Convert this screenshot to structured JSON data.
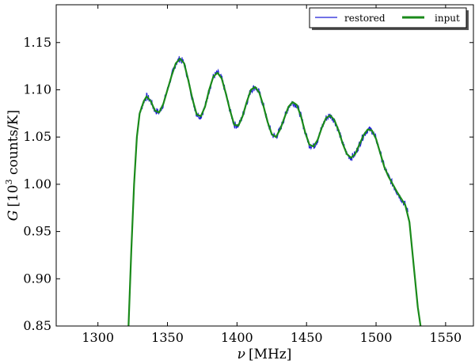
{
  "chart_data": {
    "type": "line",
    "xlabel": {
      "symbol": "ν",
      "unit": "[MHz]"
    },
    "ylabel": {
      "symbol": "G",
      "unit_pre": "[10",
      "unit_sup": "3",
      "unit_post": " counts/K]"
    },
    "xlim": [
      1270,
      1570
    ],
    "ylim": [
      0.85,
      1.19
    ],
    "xticks": [
      1300,
      1350,
      1400,
      1450,
      1500,
      1550
    ],
    "yticks": [
      0.85,
      0.9,
      0.95,
      1.0,
      1.05,
      1.1,
      1.15
    ],
    "xtick_labels": [
      "1300",
      "1350",
      "1400",
      "1450",
      "1500",
      "1550"
    ],
    "ytick_labels": [
      "0.85",
      "0.90",
      "0.95",
      "1.00",
      "1.05",
      "1.10",
      "1.15"
    ],
    "legend_position": "top-right",
    "series": [
      {
        "name": "restored",
        "color": "#1f1fd6",
        "style": "thin-noisy",
        "x": [
          1322,
          1324,
          1326,
          1328,
          1330,
          1333,
          1335,
          1338,
          1341,
          1344,
          1347,
          1350,
          1353,
          1356,
          1359,
          1362,
          1365,
          1368,
          1371,
          1374,
          1377,
          1380,
          1383,
          1386,
          1389,
          1392,
          1395,
          1398,
          1401,
          1404,
          1407,
          1410,
          1413,
          1416,
          1419,
          1422,
          1425,
          1428,
          1431,
          1434,
          1437,
          1440,
          1443,
          1446,
          1449,
          1452,
          1455,
          1458,
          1461,
          1464,
          1467,
          1470,
          1473,
          1476,
          1479,
          1482,
          1485,
          1488,
          1491,
          1494,
          1497,
          1500,
          1503,
          1506,
          1509,
          1512,
          1515,
          1518,
          1521,
          1523
        ],
        "y": [
          0.85,
          0.93,
          1.0,
          1.05,
          1.075,
          1.088,
          1.093,
          1.088,
          1.078,
          1.076,
          1.085,
          1.1,
          1.115,
          1.128,
          1.133,
          1.128,
          1.11,
          1.09,
          1.074,
          1.072,
          1.082,
          1.1,
          1.114,
          1.118,
          1.112,
          1.096,
          1.078,
          1.063,
          1.062,
          1.072,
          1.087,
          1.1,
          1.103,
          1.097,
          1.083,
          1.066,
          1.053,
          1.05,
          1.058,
          1.07,
          1.082,
          1.087,
          1.084,
          1.072,
          1.055,
          1.042,
          1.04,
          1.047,
          1.06,
          1.07,
          1.073,
          1.068,
          1.057,
          1.043,
          1.032,
          1.028,
          1.032,
          1.042,
          1.052,
          1.058,
          1.057,
          1.048,
          1.033,
          1.018,
          1.008,
          1.0,
          0.992,
          0.985,
          0.978,
          0.97
        ]
      },
      {
        "name": "input",
        "color": "#1a8a1a",
        "style": "thick",
        "x": [
          1322,
          1324,
          1326,
          1328,
          1330,
          1333,
          1335,
          1338,
          1341,
          1344,
          1347,
          1350,
          1353,
          1356,
          1359,
          1362,
          1365,
          1368,
          1371,
          1374,
          1377,
          1380,
          1383,
          1386,
          1389,
          1392,
          1395,
          1398,
          1401,
          1404,
          1407,
          1410,
          1413,
          1416,
          1419,
          1422,
          1425,
          1428,
          1431,
          1434,
          1437,
          1440,
          1443,
          1446,
          1449,
          1452,
          1455,
          1458,
          1461,
          1464,
          1467,
          1470,
          1473,
          1476,
          1479,
          1482,
          1485,
          1488,
          1491,
          1494,
          1497,
          1500,
          1503,
          1506,
          1509,
          1512,
          1515,
          1518,
          1521,
          1524,
          1526,
          1528,
          1530,
          1532
        ],
        "y": [
          0.85,
          0.93,
          1.0,
          1.05,
          1.075,
          1.088,
          1.093,
          1.088,
          1.078,
          1.076,
          1.085,
          1.1,
          1.115,
          1.128,
          1.133,
          1.128,
          1.11,
          1.09,
          1.074,
          1.072,
          1.082,
          1.1,
          1.114,
          1.118,
          1.112,
          1.096,
          1.078,
          1.063,
          1.062,
          1.072,
          1.087,
          1.1,
          1.103,
          1.097,
          1.083,
          1.066,
          1.053,
          1.05,
          1.058,
          1.07,
          1.082,
          1.087,
          1.084,
          1.072,
          1.055,
          1.042,
          1.04,
          1.047,
          1.06,
          1.07,
          1.073,
          1.068,
          1.057,
          1.043,
          1.032,
          1.028,
          1.032,
          1.042,
          1.052,
          1.058,
          1.057,
          1.048,
          1.033,
          1.018,
          1.008,
          1.0,
          0.992,
          0.985,
          0.978,
          0.96,
          0.93,
          0.9,
          0.87,
          0.85
        ]
      }
    ]
  }
}
